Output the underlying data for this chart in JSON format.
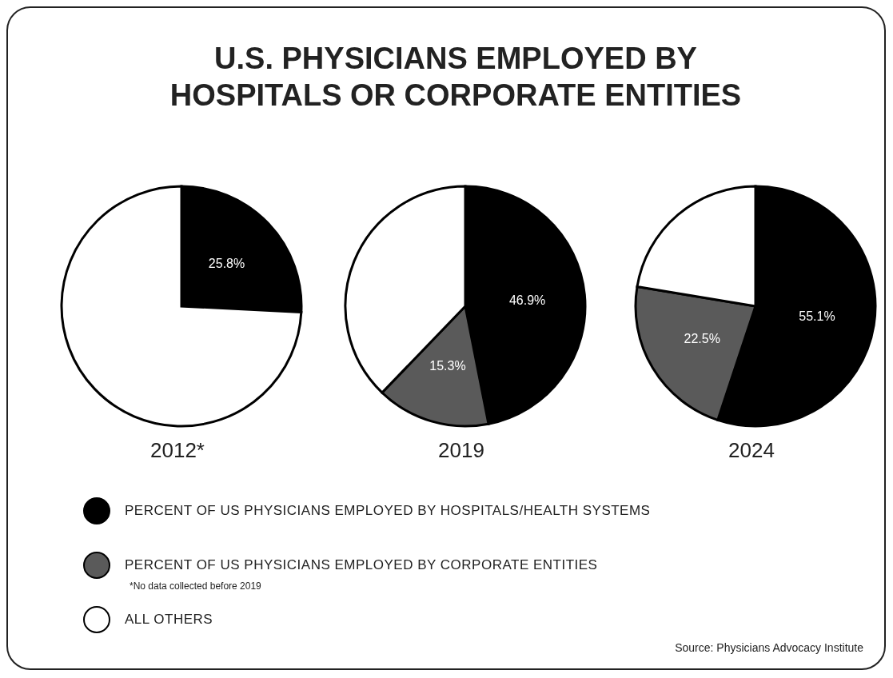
{
  "chart_data": [
    {
      "type": "pie",
      "title": "U.S. PHYSICIANS EMPLOYED BY HOSPITALS OR CORPORATE ENTITIES",
      "xlabel": "2012*",
      "categories": [
        null,
        null
      ],
      "values": [
        25.8,
        74.2
      ],
      "value_labels": [
        "25.8%",
        null
      ],
      "colors": [
        "#000000",
        "#ffffff"
      ]
    },
    {
      "type": "pie",
      "xlabel": "2019",
      "categories": [
        "PERCENT OF US PHYSICIANS EMPLOYED BY HOSPITALS/HEALTH SYSTEMS",
        "PERCENT OF US PHYSICIANS EMPLOYED BY CORPORATE ENTITIES",
        "ALL OTHERS"
      ],
      "values": [
        46.9,
        15.3,
        37.8
      ],
      "value_labels": [
        "46.9%",
        "15.3%",
        null
      ],
      "colors": [
        "#000000",
        "#5a5a5a",
        "#ffffff"
      ],
      "legend": "bottom",
      "annotations": [
        "*No data collected before 2019",
        "Source: Physicians Advocacy Institute"
      ]
    },
    {
      "type": "pie",
      "xlabel": "2024",
      "categories": [
        null,
        null,
        null
      ],
      "values": [
        55.1,
        22.5,
        22.4
      ],
      "value_labels": [
        "55.1%",
        "22.5%",
        null
      ],
      "colors": [
        "#000000",
        "#5a5a5a",
        "#ffffff"
      ]
    }
  ]
}
